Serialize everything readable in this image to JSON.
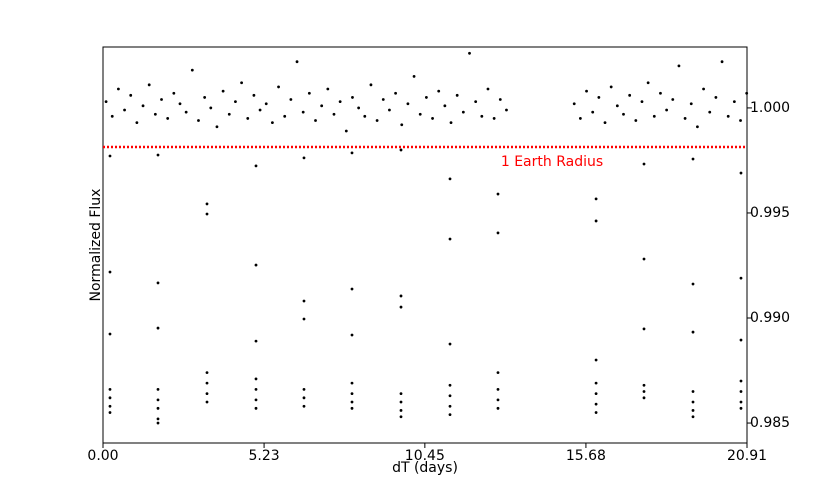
{
  "chart_data": {
    "type": "scatter",
    "x_label": "dT (days)",
    "y_label": "Normalized Flux",
    "xlim": [
      0,
      20.91
    ],
    "ylim": [
      0.98405,
      1.0029
    ],
    "xticks": [
      {
        "value": 0,
        "label": "0.00"
      },
      5.23,
      10.45,
      15.68,
      20.91
    ],
    "yticks": [
      0.985,
      {
        "value": 0.99,
        "label": "0.990"
      },
      0.995,
      {
        "value": 1,
        "label": "1.000"
      }
    ],
    "y_axis_side": "right",
    "reference_line": {
      "value": 0.99814,
      "label": "1 Earth Radius",
      "color": "#ff0000"
    },
    "series": [
      {
        "color": "#000000",
        "x": [
          0.1,
          0.3,
          0.5,
          0.7,
          0.9,
          1.1,
          1.3,
          1.5,
          1.7,
          1.9,
          2.1,
          2.3,
          2.5,
          2.7,
          2.9,
          3.1,
          3.3,
          3.5,
          3.7,
          3.9,
          4.1,
          4.3,
          4.5,
          4.7,
          4.9,
          5.1,
          5.3,
          5.5,
          5.7,
          5.9,
          6.1,
          6.3,
          6.5,
          6.7,
          6.9,
          7.1,
          7.3,
          7.5,
          7.7,
          7.9,
          8.1,
          8.3,
          8.5,
          8.7,
          8.9,
          9.1,
          9.3,
          9.5,
          9.7,
          9.9,
          10.1,
          10.3,
          10.5,
          10.7,
          10.9,
          11.1,
          11.3,
          11.5,
          11.7,
          11.9,
          12.1,
          12.3,
          12.5,
          12.7,
          12.9,
          13.1,
          15.3,
          15.5,
          15.7,
          15.9,
          16.1,
          16.3,
          16.5,
          16.7,
          16.9,
          17.1,
          17.3,
          17.5,
          17.7,
          17.9,
          18.1,
          18.3,
          18.5,
          18.7,
          18.9,
          19.1,
          19.3,
          19.5,
          19.7,
          19.9,
          20.1,
          20.3,
          20.5,
          20.7,
          20.9
        ],
        "values": [
          1.0003,
          0.9996,
          1.0009,
          0.9999,
          1.0006,
          0.9993,
          1.0001,
          1.0011,
          0.9997,
          1.0004,
          0.9995,
          1.0007,
          1.0002,
          0.9998,
          1.0018,
          0.9994,
          1.0005,
          1.0,
          0.9991,
          1.0008,
          0.9997,
          1.0003,
          1.0012,
          0.9995,
          1.0006,
          0.9999,
          1.0002,
          0.9993,
          1.001,
          0.9996,
          1.0004,
          1.0022,
          0.9998,
          1.0007,
          0.9994,
          1.0001,
          1.0009,
          0.9997,
          1.0003,
          0.9989,
          1.0005,
          1.0,
          0.9996,
          1.0011,
          0.9994,
          1.0004,
          0.9999,
          1.0007,
          0.9992,
          1.0002,
          1.0015,
          0.9997,
          1.0005,
          0.9995,
          1.0008,
          1.0001,
          0.9993,
          1.0006,
          0.9998,
          1.0026,
          1.0003,
          0.9996,
          1.0009,
          0.9995,
          1.0004,
          0.9999,
          1.0002,
          0.9995,
          1.0008,
          0.9998,
          1.0005,
          0.9993,
          1.001,
          1.0001,
          0.9997,
          1.0006,
          0.9994,
          1.0003,
          1.0012,
          0.9996,
          1.0007,
          0.9999,
          1.0004,
          1.002,
          0.9995,
          1.0002,
          0.9991,
          1.0009,
          0.9998,
          1.0005,
          1.0022,
          0.9996,
          1.0003,
          0.9994,
          1.0007
        ]
      },
      {
        "color": "#000000",
        "x": [
          0.227,
          0.227,
          0.227,
          0.227,
          0.227,
          0.227,
          0.227,
          1.786,
          1.786,
          1.786,
          1.786,
          1.786,
          1.786,
          1.786,
          1.786,
          3.377,
          3.377,
          3.377,
          3.377,
          3.377,
          3.377,
          4.968,
          4.968,
          4.968,
          4.968,
          4.968,
          4.968,
          4.968,
          6.526,
          6.526,
          6.526,
          6.526,
          6.526,
          6.526,
          8.085,
          8.085,
          8.085,
          8.085,
          8.085,
          8.085,
          8.085,
          9.676,
          9.676,
          9.676,
          9.676,
          9.676,
          9.676,
          9.676,
          11.267,
          11.267,
          11.267,
          11.267,
          11.267,
          11.267,
          11.267,
          12.825,
          12.825,
          12.825,
          12.825,
          12.825,
          12.825,
          16.01,
          16.01,
          16.01,
          16.01,
          16.01,
          16.01,
          16.01,
          17.566,
          17.566,
          17.566,
          17.566,
          17.566,
          17.566,
          19.157,
          19.157,
          19.157,
          19.157,
          19.157,
          19.157,
          19.157,
          20.715,
          20.715,
          20.715,
          20.715,
          20.715,
          20.715,
          20.715
        ],
        "values": [
          0.99771,
          0.99219,
          0.98924,
          0.9866,
          0.9862,
          0.9858,
          0.9855,
          0.99776,
          0.99167,
          0.98952,
          0.9866,
          0.9861,
          0.9857,
          0.9852,
          0.985,
          0.99543,
          0.99495,
          0.9874,
          0.9869,
          0.9864,
          0.986,
          0.99724,
          0.99252,
          0.9889,
          0.9871,
          0.9866,
          0.9861,
          0.9857,
          0.99762,
          0.99081,
          0.98995,
          0.9866,
          0.9862,
          0.9858,
          0.99786,
          0.99138,
          0.98919,
          0.9869,
          0.9864,
          0.986,
          0.9857,
          0.998,
          0.99105,
          0.99052,
          0.9864,
          0.986,
          0.9856,
          0.9853,
          0.99662,
          0.99376,
          0.98876,
          0.9868,
          0.9863,
          0.9858,
          0.9854,
          0.9959,
          0.99405,
          0.9874,
          0.9866,
          0.9861,
          0.9857,
          0.99567,
          0.99462,
          0.988,
          0.9869,
          0.9864,
          0.9859,
          0.9855,
          0.99733,
          0.99281,
          0.98948,
          0.9868,
          0.9865,
          0.9862,
          0.99757,
          0.99162,
          0.98933,
          0.9865,
          0.986,
          0.9856,
          0.9853,
          0.9969,
          0.9919,
          0.98895,
          0.987,
          0.9865,
          0.986,
          0.9857
        ]
      }
    ]
  }
}
